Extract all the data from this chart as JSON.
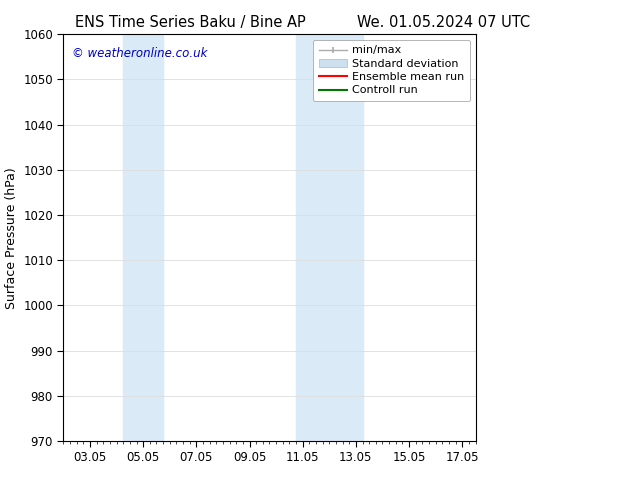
{
  "title_left": "ENS Time Series Baku / Bine AP",
  "title_right": "We. 01.05.2024 07 UTC",
  "ylabel": "Surface Pressure (hPa)",
  "ylim": [
    970,
    1060
  ],
  "yticks": [
    970,
    980,
    990,
    1000,
    1010,
    1020,
    1030,
    1040,
    1050,
    1060
  ],
  "xlim": [
    2.0,
    17.5
  ],
  "xticks": [
    3.0,
    5.0,
    7.0,
    9.0,
    11.0,
    13.0,
    15.0,
    17.0
  ],
  "xticklabels": [
    "03.05",
    "05.05",
    "07.05",
    "09.05",
    "11.05",
    "13.05",
    "15.05",
    "17.05"
  ],
  "watermark": "© weatheronline.co.uk",
  "watermark_color": "#0000bb",
  "background_color": "#ffffff",
  "plot_bg_color": "#ffffff",
  "shaded_regions": [
    {
      "xmin": 4.25,
      "xmax": 5.75,
      "color": "#daeaf7"
    },
    {
      "xmin": 10.75,
      "xmax": 13.25,
      "color": "#daeaf7"
    }
  ],
  "legend_entries": [
    {
      "label": "min/max",
      "color": "#aaaaaa",
      "lw": 1.5
    },
    {
      "label": "Standard deviation",
      "color": "#cde0f0",
      "lw": 8
    },
    {
      "label": "Ensemble mean run",
      "color": "#ff0000",
      "lw": 1.5
    },
    {
      "label": "Controll run",
      "color": "#007700",
      "lw": 1.5
    }
  ],
  "title_fontsize": 10.5,
  "tick_fontsize": 8.5,
  "ylabel_fontsize": 9,
  "legend_fontsize": 8
}
